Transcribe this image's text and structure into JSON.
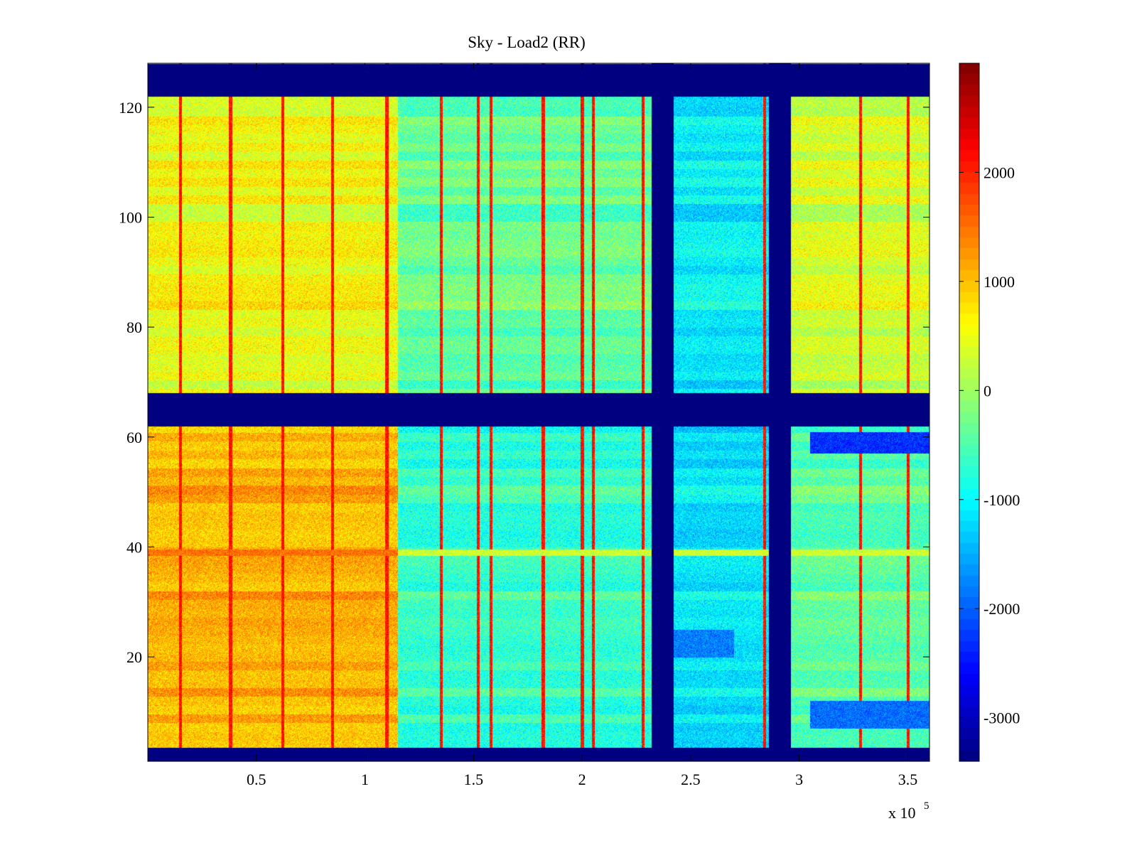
{
  "chart_data": {
    "type": "heatmap",
    "title": "Sky - Load2 (RR)",
    "xlabel": "",
    "ylabel": "",
    "x_exponent_label": {
      "base": "x 10",
      "exponent": "5"
    },
    "xlim": [
      0,
      360000
    ],
    "ylim": [
      1,
      128
    ],
    "x_ticks": [
      {
        "value": 0.5,
        "label": "0.5"
      },
      {
        "value": 1,
        "label": "1"
      },
      {
        "value": 1.5,
        "label": "1.5"
      },
      {
        "value": 2,
        "label": "2"
      },
      {
        "value": 2.5,
        "label": "2.5"
      },
      {
        "value": 3,
        "label": "3"
      },
      {
        "value": 3.5,
        "label": "3.5"
      }
    ],
    "y_ticks": [
      {
        "value": 20,
        "label": "20"
      },
      {
        "value": 40,
        "label": "40"
      },
      {
        "value": 60,
        "label": "60"
      },
      {
        "value": 80,
        "label": "80"
      },
      {
        "value": 100,
        "label": "100"
      },
      {
        "value": 120,
        "label": "120"
      }
    ],
    "colorbar": {
      "colormap": "jet",
      "range": [
        -3400,
        3000
      ],
      "ticks": [
        {
          "value": 2000,
          "label": "2000"
        },
        {
          "value": 1000,
          "label": "1000"
        },
        {
          "value": 0,
          "label": "0"
        },
        {
          "value": -1000,
          "label": "-1000"
        },
        {
          "value": -2000,
          "label": "-2000"
        },
        {
          "value": -3000,
          "label": "-3000"
        }
      ]
    },
    "masked_value": -3400,
    "masked_rows": [
      [
        1,
        3.5
      ],
      [
        62,
        68
      ],
      [
        122,
        128
      ]
    ],
    "masked_columns": [
      [
        232000,
        242000
      ],
      [
        286000,
        296000
      ]
    ],
    "blocks": [
      {
        "x": [
          0,
          115000
        ],
        "y": [
          3.5,
          62
        ],
        "mean": 1050
      },
      {
        "x": [
          115000,
          232000
        ],
        "y": [
          3.5,
          62
        ],
        "mean": -700
      },
      {
        "x": [
          242000,
          286000
        ],
        "y": [
          3.5,
          62
        ],
        "mean": -1150
      },
      {
        "x": [
          296000,
          360000
        ],
        "y": [
          3.5,
          62
        ],
        "mean": -450
      },
      {
        "x": [
          0,
          115000
        ],
        "y": [
          68,
          122
        ],
        "mean": 550
      },
      {
        "x": [
          115000,
          232000
        ],
        "y": [
          68,
          122
        ],
        "mean": -350
      },
      {
        "x": [
          242000,
          286000
        ],
        "y": [
          68,
          122
        ],
        "mean": -1050
      },
      {
        "x": [
          296000,
          360000
        ],
        "y": [
          68,
          122
        ],
        "mean": 350
      }
    ],
    "striations_x": [
      15000,
      38000,
      62000,
      85000,
      110000,
      135000,
      152000,
      158000,
      182000,
      200000,
      205000,
      228000,
      284000,
      328000,
      350000
    ],
    "striation_value": 2100,
    "cross_row": {
      "y": 39,
      "value_left": 1500,
      "value_right": 300
    },
    "cold_patches": [
      {
        "x": [
          305000,
          360000
        ],
        "y": [
          57,
          61
        ],
        "value": -2300
      },
      {
        "x": [
          305000,
          360000
        ],
        "y": [
          7,
          12
        ],
        "value": -1900
      },
      {
        "x": [
          242000,
          270000
        ],
        "y": [
          20,
          25
        ],
        "value": -1800
      }
    ]
  }
}
